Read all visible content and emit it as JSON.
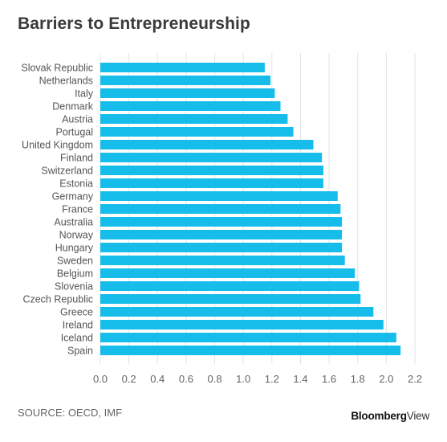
{
  "title": "Barriers to Entrepreneurship",
  "source": "SOURCE: OECD, IMF",
  "brand": {
    "bold": "Bloomberg",
    "light": "View"
  },
  "colors": {
    "bar": "#16bdea",
    "grid": "#e3e3e3",
    "label": "#555555",
    "tick": "#666666"
  },
  "chart_data": {
    "type": "bar",
    "orientation": "horizontal",
    "title": "Barriers to Entrepreneurship",
    "xlabel": "",
    "ylabel": "",
    "xlim": [
      0,
      2.2
    ],
    "xticks": [
      "0.0",
      "0.2",
      "0.4",
      "0.6",
      "0.8",
      "1.0",
      "1.2",
      "1.4",
      "1.6",
      "1.8",
      "2.0",
      "2.2"
    ],
    "grid": true,
    "categories": [
      "Slovak Republic",
      "Netherlands",
      "Italy",
      "Denmark",
      "Austria",
      "Portugal",
      "United Kingdom",
      "Finland",
      "Switzerland",
      "Estonia",
      "Germany",
      "France",
      "Australia",
      "Norway",
      "Hungary",
      "Sweden",
      "Belgium",
      "Slovenia",
      "Czech Republic",
      "Greece",
      "Ireland",
      "Iceland",
      "Spain"
    ],
    "values": [
      1.15,
      1.19,
      1.22,
      1.26,
      1.31,
      1.35,
      1.49,
      1.55,
      1.56,
      1.56,
      1.66,
      1.68,
      1.69,
      1.69,
      1.69,
      1.71,
      1.78,
      1.81,
      1.82,
      1.91,
      1.98,
      2.07,
      2.1
    ]
  }
}
